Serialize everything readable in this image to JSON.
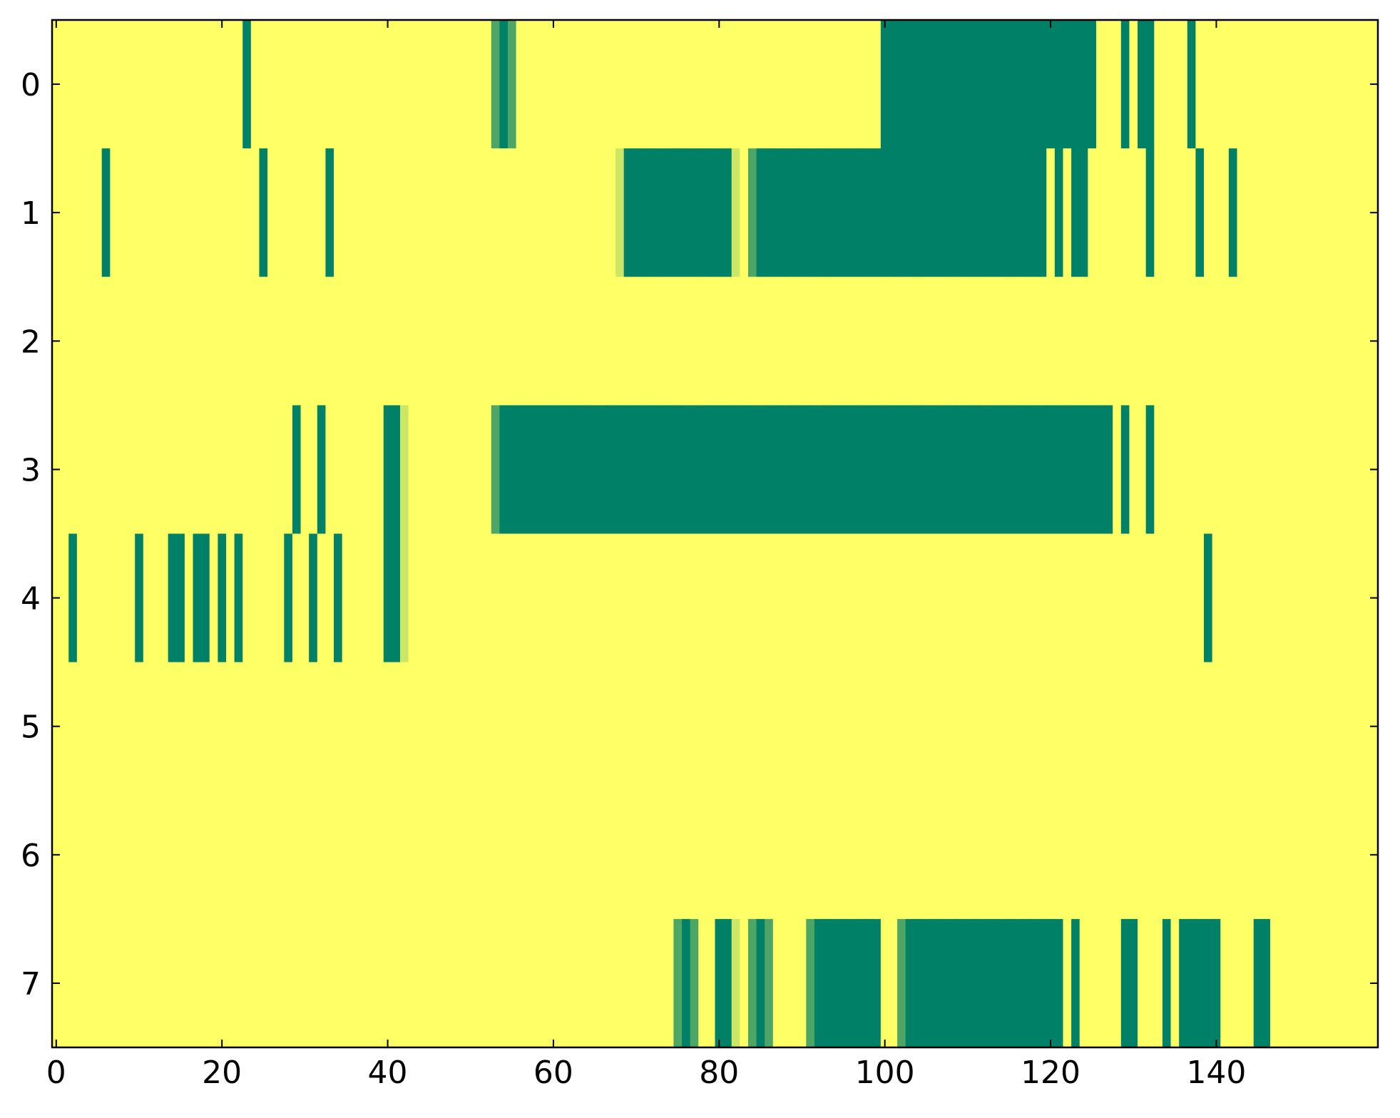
{
  "chart_data": {
    "type": "heatmap",
    "colormap": "summer",
    "clim": [
      0,
      1
    ],
    "xlim": [
      -0.5,
      159.5
    ],
    "ylim": [
      7.5,
      -0.5
    ],
    "xticks": [
      0,
      20,
      40,
      60,
      80,
      100,
      120,
      140
    ],
    "yticks": [
      0,
      1,
      2,
      3,
      4,
      5,
      6,
      7
    ],
    "z": [
      [
        1,
        1,
        1,
        1,
        1,
        1,
        1,
        1,
        1,
        1,
        1,
        1,
        1,
        1,
        1,
        1,
        1,
        1,
        1,
        1,
        1,
        1,
        1,
        0,
        1,
        1,
        1,
        1,
        1,
        1,
        1,
        1,
        1,
        1,
        1,
        1,
        1,
        1,
        1,
        1,
        1,
        1,
        1,
        1,
        1,
        1,
        1,
        1,
        1,
        1,
        1,
        1,
        1,
        0.3,
        0,
        0.3,
        1,
        1,
        1,
        1,
        1,
        1,
        1,
        1,
        1,
        1,
        1,
        1,
        1,
        1,
        1,
        1,
        1,
        1,
        1,
        1,
        1,
        1,
        1,
        1,
        1,
        1,
        1,
        1,
        1,
        1,
        1,
        1,
        1,
        1,
        1,
        1,
        1,
        1,
        1,
        1,
        1,
        1,
        1,
        1,
        0,
        0,
        0,
        0,
        0,
        0,
        0,
        0,
        0,
        0,
        0,
        0,
        0,
        0,
        0,
        0,
        0,
        0,
        0,
        0,
        0,
        0,
        0,
        0,
        0,
        0,
        1,
        1,
        1,
        0,
        1,
        0,
        0,
        1,
        1,
        1,
        1,
        0,
        1,
        1,
        1,
        1,
        1,
        1,
        1,
        1,
        1,
        1,
        1,
        1,
        1,
        1,
        1,
        1,
        1,
        1,
        1,
        1,
        1,
        1
      ],
      [
        1,
        1,
        1,
        1,
        1,
        1,
        0,
        1,
        1,
        1,
        1,
        1,
        1,
        1,
        1,
        1,
        1,
        1,
        1,
        1,
        1,
        1,
        1,
        1,
        1,
        0,
        1,
        1,
        1,
        1,
        1,
        1,
        1,
        0,
        1,
        1,
        1,
        1,
        1,
        1,
        1,
        1,
        1,
        1,
        1,
        1,
        1,
        1,
        1,
        1,
        1,
        1,
        1,
        1,
        1,
        1,
        1,
        1,
        1,
        1,
        1,
        1,
        1,
        1,
        1,
        1,
        1,
        1,
        0.8,
        0,
        0,
        0,
        0,
        0,
        0,
        0,
        0,
        0,
        0,
        0,
        0,
        0,
        0.8,
        1,
        0.3,
        0,
        0,
        0,
        0,
        0,
        0,
        0,
        0,
        0,
        0,
        0,
        0,
        0,
        0,
        0,
        0,
        0,
        0,
        0,
        0,
        0,
        0,
        0,
        0,
        0,
        0,
        0,
        0,
        0,
        0,
        0,
        0,
        0,
        0,
        0,
        1,
        0,
        1,
        0,
        0,
        1,
        1,
        1,
        1,
        1,
        1,
        1,
        0,
        1,
        1,
        1,
        1,
        1,
        0,
        1,
        1,
        1,
        0,
        1,
        1,
        1,
        1,
        1,
        1,
        1,
        1,
        1,
        1,
        1,
        1,
        1,
        1,
        1,
        1,
        1
      ],
      [
        1,
        1,
        1,
        1,
        1,
        1,
        1,
        1,
        1,
        1,
        1,
        1,
        1,
        1,
        1,
        1,
        1,
        1,
        1,
        1,
        1,
        1,
        1,
        1,
        1,
        1,
        1,
        1,
        1,
        1,
        1,
        1,
        1,
        1,
        1,
        1,
        1,
        1,
        1,
        1,
        1,
        1,
        1,
        1,
        1,
        1,
        1,
        1,
        1,
        1,
        1,
        1,
        1,
        1,
        1,
        1,
        1,
        1,
        1,
        1,
        1,
        1,
        1,
        1,
        1,
        1,
        1,
        1,
        1,
        1,
        1,
        1,
        1,
        1,
        1,
        1,
        1,
        1,
        1,
        1,
        1,
        1,
        1,
        1,
        1,
        1,
        1,
        1,
        1,
        1,
        1,
        1,
        1,
        1,
        1,
        1,
        1,
        1,
        1,
        1,
        1,
        1,
        1,
        1,
        1,
        1,
        1,
        1,
        1,
        1,
        1,
        1,
        1,
        1,
        1,
        1,
        1,
        1,
        1,
        1,
        1,
        1,
        1,
        1,
        1,
        1,
        1,
        1,
        1,
        1,
        1,
        1,
        1,
        1,
        1,
        1,
        1,
        1,
        1,
        1,
        1,
        1,
        1,
        1,
        1,
        1,
        1,
        1,
        1,
        1,
        1,
        1,
        1,
        1,
        1,
        1,
        1,
        1,
        1,
        1
      ],
      [
        1,
        1,
        1,
        1,
        1,
        1,
        1,
        1,
        1,
        1,
        1,
        1,
        1,
        1,
        1,
        1,
        1,
        1,
        1,
        1,
        1,
        1,
        1,
        1,
        1,
        1,
        1,
        1,
        1,
        0,
        1,
        1,
        0,
        1,
        1,
        1,
        1,
        1,
        1,
        1,
        0,
        0,
        0.8,
        1,
        1,
        1,
        1,
        1,
        1,
        1,
        1,
        1,
        1,
        0.3,
        0,
        0,
        0,
        0,
        0,
        0,
        0,
        0,
        0,
        0,
        0,
        0,
        0,
        0,
        0,
        0,
        0,
        0,
        0,
        0,
        0,
        0,
        0,
        0,
        0,
        0,
        0,
        0,
        0,
        0,
        0,
        0,
        0,
        0,
        0,
        0,
        0,
        0,
        0,
        0,
        0,
        0,
        0,
        0,
        0,
        0,
        0,
        0,
        0,
        0,
        0,
        0,
        0,
        0,
        0,
        0,
        0,
        0,
        0,
        0,
        0,
        0,
        0,
        0,
        0,
        0,
        0,
        0,
        0,
        0,
        0,
        0,
        0,
        0,
        1,
        0,
        1,
        1,
        0,
        1,
        1,
        1,
        1,
        1,
        1,
        1,
        1,
        1,
        1,
        1,
        1,
        1,
        1,
        1,
        1,
        1,
        1,
        1,
        1,
        1,
        1,
        1,
        1,
        1,
        1,
        1
      ],
      [
        1,
        1,
        0,
        1,
        1,
        1,
        1,
        1,
        1,
        1,
        0,
        1,
        1,
        1,
        0,
        0,
        1,
        0,
        0,
        1,
        0,
        1,
        0,
        1,
        1,
        1,
        1,
        1,
        0,
        1,
        1,
        0,
        1,
        1,
        0,
        1,
        1,
        1,
        1,
        1,
        0,
        0,
        0.8,
        1,
        1,
        1,
        1,
        1,
        1,
        1,
        1,
        1,
        1,
        1,
        1,
        1,
        1,
        1,
        1,
        1,
        1,
        1,
        1,
        1,
        1,
        1,
        1,
        1,
        1,
        1,
        1,
        1,
        1,
        1,
        1,
        1,
        1,
        1,
        1,
        1,
        1,
        1,
        1,
        1,
        1,
        1,
        1,
        1,
        1,
        1,
        1,
        1,
        1,
        1,
        1,
        1,
        1,
        1,
        1,
        1,
        1,
        1,
        1,
        1,
        1,
        1,
        1,
        1,
        1,
        1,
        1,
        1,
        1,
        1,
        1,
        1,
        1,
        1,
        1,
        1,
        1,
        1,
        1,
        1,
        1,
        1,
        1,
        1,
        1,
        1,
        1,
        1,
        1,
        1,
        1,
        1,
        1,
        1,
        1,
        0,
        1,
        1,
        1,
        1,
        1,
        1,
        1,
        1,
        1,
        1,
        1,
        1,
        1,
        1,
        1,
        1,
        1,
        1,
        1,
        1
      ],
      [
        1,
        1,
        1,
        1,
        1,
        1,
        1,
        1,
        1,
        1,
        1,
        1,
        1,
        1,
        1,
        1,
        1,
        1,
        1,
        1,
        1,
        1,
        1,
        1,
        1,
        1,
        1,
        1,
        1,
        1,
        1,
        1,
        1,
        1,
        1,
        1,
        1,
        1,
        1,
        1,
        1,
        1,
        1,
        1,
        1,
        1,
        1,
        1,
        1,
        1,
        1,
        1,
        1,
        1,
        1,
        1,
        1,
        1,
        1,
        1,
        1,
        1,
        1,
        1,
        1,
        1,
        1,
        1,
        1,
        1,
        1,
        1,
        1,
        1,
        1,
        1,
        1,
        1,
        1,
        1,
        1,
        1,
        1,
        1,
        1,
        1,
        1,
        1,
        1,
        1,
        1,
        1,
        1,
        1,
        1,
        1,
        1,
        1,
        1,
        1,
        1,
        1,
        1,
        1,
        1,
        1,
        1,
        1,
        1,
        1,
        1,
        1,
        1,
        1,
        1,
        1,
        1,
        1,
        1,
        1,
        1,
        1,
        1,
        1,
        1,
        1,
        1,
        1,
        1,
        1,
        1,
        1,
        1,
        1,
        1,
        1,
        1,
        1,
        1,
        1,
        1,
        1,
        1,
        1,
        1,
        1,
        1,
        1,
        1,
        1,
        1,
        1,
        1,
        1,
        1,
        1,
        1,
        1,
        1,
        1
      ],
      [
        1,
        1,
        1,
        1,
        1,
        1,
        1,
        1,
        1,
        1,
        1,
        1,
        1,
        1,
        1,
        1,
        1,
        1,
        1,
        1,
        1,
        1,
        1,
        1,
        1,
        1,
        1,
        1,
        1,
        1,
        1,
        1,
        1,
        1,
        1,
        1,
        1,
        1,
        1,
        1,
        1,
        1,
        1,
        1,
        1,
        1,
        1,
        1,
        1,
        1,
        1,
        1,
        1,
        1,
        1,
        1,
        1,
        1,
        1,
        1,
        1,
        1,
        1,
        1,
        1,
        1,
        1,
        1,
        1,
        1,
        1,
        1,
        1,
        1,
        1,
        1,
        1,
        1,
        1,
        1,
        1,
        1,
        1,
        1,
        1,
        1,
        1,
        1,
        1,
        1,
        1,
        1,
        1,
        1,
        1,
        1,
        1,
        1,
        1,
        1,
        1,
        1,
        1,
        1,
        1,
        1,
        1,
        1,
        1,
        1,
        1,
        1,
        1,
        1,
        1,
        1,
        1,
        1,
        1,
        1,
        1,
        1,
        1,
        1,
        1,
        1,
        1,
        1,
        1,
        1,
        1,
        1,
        1,
        1,
        1,
        1,
        1,
        1,
        1,
        1,
        1,
        1,
        1,
        1,
        1,
        1,
        1,
        1,
        1,
        1,
        1,
        1,
        1,
        1,
        1,
        1,
        1,
        1,
        1,
        1
      ],
      [
        1,
        1,
        1,
        1,
        1,
        1,
        1,
        1,
        1,
        1,
        1,
        1,
        1,
        1,
        1,
        1,
        1,
        1,
        1,
        1,
        1,
        1,
        1,
        1,
        1,
        1,
        1,
        1,
        1,
        1,
        1,
        1,
        1,
        1,
        1,
        1,
        1,
        1,
        1,
        1,
        1,
        1,
        1,
        1,
        1,
        1,
        1,
        1,
        1,
        1,
        1,
        1,
        1,
        1,
        1,
        1,
        1,
        1,
        1,
        1,
        1,
        1,
        1,
        1,
        1,
        1,
        1,
        1,
        1,
        1,
        1,
        1,
        1,
        1,
        1,
        0.3,
        0,
        0.3,
        1,
        1,
        0,
        0,
        0.8,
        1,
        0.3,
        0,
        0.3,
        1,
        1,
        1,
        1,
        0.3,
        0,
        0,
        0,
        0,
        0,
        0,
        0,
        0,
        1,
        1,
        0.3,
        0,
        0,
        0,
        0,
        0,
        0,
        0,
        0,
        0,
        0,
        0,
        0,
        0,
        0,
        0,
        0,
        0,
        0,
        0,
        1,
        0,
        1,
        1,
        1,
        1,
        1,
        0,
        0,
        1,
        1,
        1,
        0,
        1,
        0,
        0,
        0,
        0,
        0,
        1,
        1,
        1,
        1,
        0,
        0,
        1,
        1,
        1,
        1,
        1,
        1,
        1,
        1,
        1,
        1,
        1,
        1,
        1
      ]
    ]
  }
}
